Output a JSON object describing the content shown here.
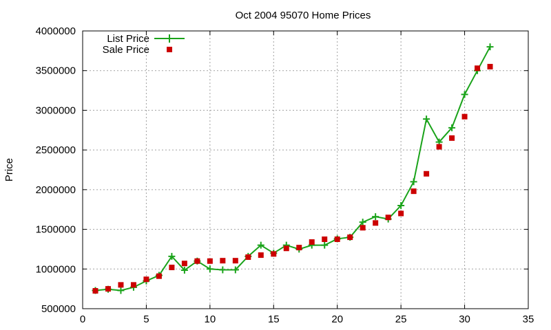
{
  "chart_data": {
    "type": "line",
    "title": "Oct 2004 95070 Home Prices",
    "xlabel": "",
    "ylabel": "Price",
    "xlim": [
      0,
      35
    ],
    "ylim": [
      500000,
      4000000
    ],
    "x_ticks": [
      0,
      5,
      10,
      15,
      20,
      25,
      30,
      35
    ],
    "y_ticks": [
      500000,
      1000000,
      1500000,
      2000000,
      2500000,
      3000000,
      3500000,
      4000000
    ],
    "grid": true,
    "legend": "top-left",
    "series": [
      {
        "name": "List Price",
        "style": "line-plus",
        "color": "#1aa31a",
        "x": [
          1,
          2,
          3,
          4,
          5,
          6,
          7,
          8,
          9,
          10,
          11,
          12,
          13,
          14,
          15,
          16,
          17,
          18,
          19,
          20,
          21,
          22,
          23,
          24,
          25,
          26,
          27,
          28,
          29,
          30,
          31,
          32
        ],
        "values": [
          730000,
          745000,
          730000,
          770000,
          850000,
          920000,
          1160000,
          985000,
          1100000,
          1000000,
          990000,
          990000,
          1160000,
          1300000,
          1200000,
          1300000,
          1250000,
          1300000,
          1300000,
          1380000,
          1400000,
          1590000,
          1660000,
          1630000,
          1800000,
          2100000,
          2890000,
          2600000,
          2780000,
          3200000,
          3500000,
          3800000
        ]
      },
      {
        "name": "Sale Price",
        "style": "square",
        "color": "#cc0000",
        "x": [
          1,
          2,
          3,
          4,
          5,
          6,
          7,
          8,
          9,
          10,
          11,
          12,
          13,
          14,
          15,
          16,
          17,
          18,
          19,
          20,
          21,
          22,
          23,
          24,
          25,
          26,
          27,
          28,
          29,
          30,
          31,
          32
        ],
        "values": [
          725000,
          750000,
          800000,
          800000,
          870000,
          910000,
          1020000,
          1070000,
          1100000,
          1100000,
          1105000,
          1105000,
          1150000,
          1175000,
          1190000,
          1260000,
          1270000,
          1340000,
          1375000,
          1375000,
          1400000,
          1520000,
          1580000,
          1650000,
          1700000,
          1980000,
          2200000,
          2540000,
          2650000,
          2920000,
          3530000,
          3550000
        ]
      }
    ]
  }
}
